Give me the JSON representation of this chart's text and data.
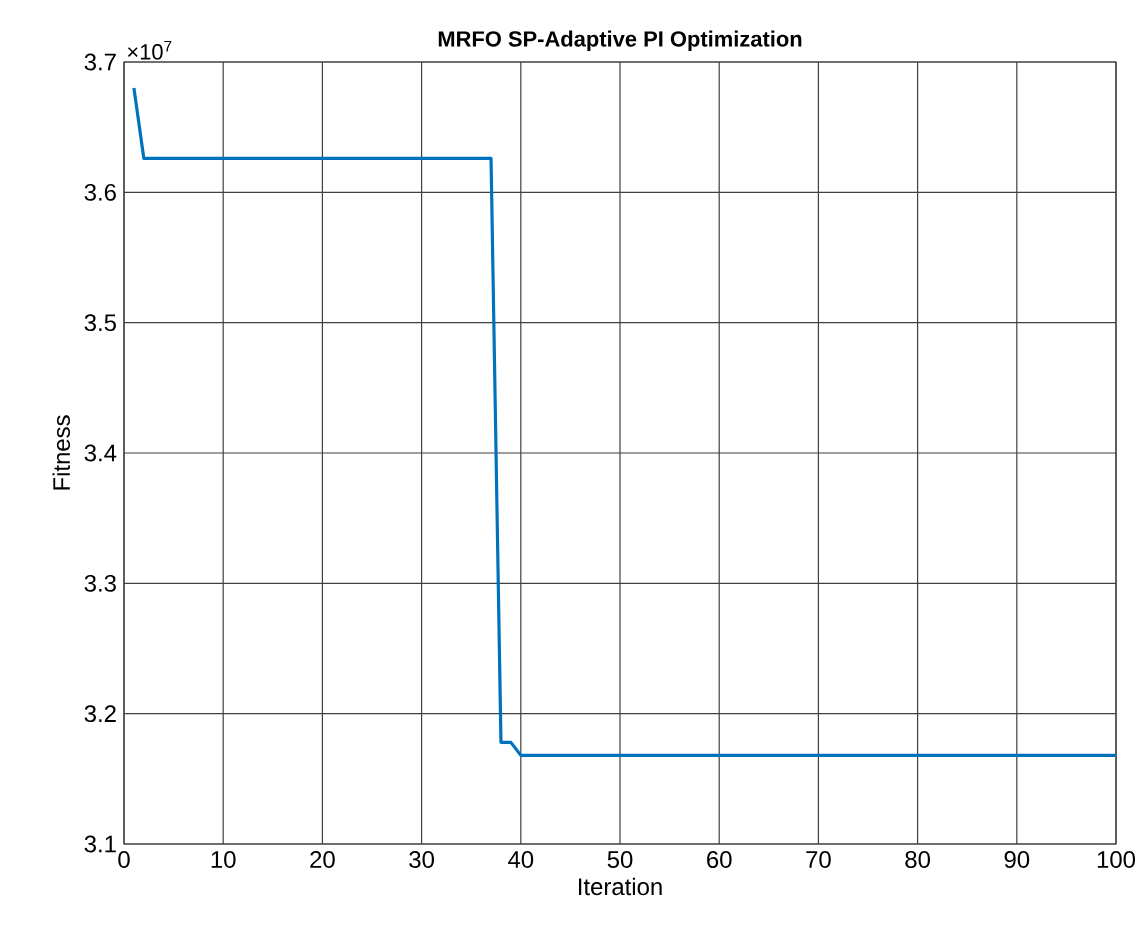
{
  "chart_data": {
    "type": "line",
    "title": "MRFO SP-Adaptive PI Optimization",
    "xlabel": "Iteration",
    "ylabel": "Fitness",
    "annotations": [
      "×10$^{7}$"
    ],
    "x": [
      1,
      2,
      37,
      38,
      39,
      40,
      100
    ],
    "series": [
      {
        "color": "#0072bd",
        "values": [
          3.68,
          3.626,
          3.626,
          3.178,
          3.178,
          3.168,
          3.168
        ]
      }
    ],
    "xlim": [
      0,
      100
    ],
    "xticks": [
      0,
      10,
      20,
      30,
      40,
      50,
      60,
      70,
      80,
      90,
      100
    ],
    "ylim": [
      3.1,
      3.7
    ],
    "yticks": [
      3.1,
      3.2,
      3.3,
      3.4,
      3.5,
      3.6,
      3.7
    ],
    "grid": true,
    "marker": "none",
    "line_style": "solid"
  }
}
